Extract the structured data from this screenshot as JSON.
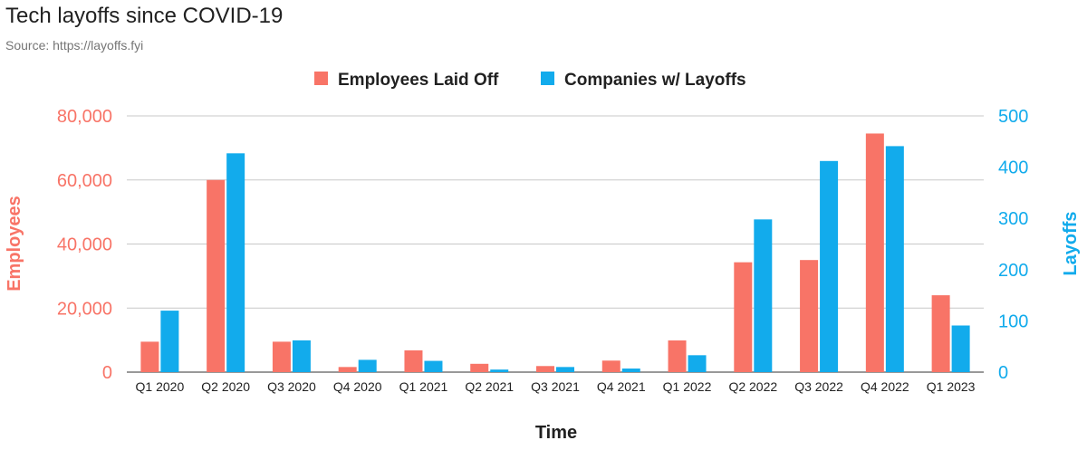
{
  "header": {
    "title": "Tech layoffs since COVID-19",
    "subtitle": "Source: https://layoffs.fyi"
  },
  "colors": {
    "employees": "#f87467",
    "companies": "#12abec",
    "grid": "#c8c8c8",
    "baseline": "#333333"
  },
  "chart_data": {
    "type": "bar",
    "title": "Tech layoffs since COVID-19",
    "subtitle": "Source: https://layoffs.fyi",
    "xlabel": "Time",
    "ylabel_left": "Employees",
    "ylabel_right": "Layoffs",
    "categories": [
      "Q1 2020",
      "Q2 2020",
      "Q3 2020",
      "Q4 2020",
      "Q1 2021",
      "Q2 2021",
      "Q3 2021",
      "Q4 2021",
      "Q1 2022",
      "Q2 2022",
      "Q3 2022",
      "Q4 2022",
      "Q1 2023"
    ],
    "series": [
      {
        "name": "Employees Laid Off",
        "axis": "left",
        "values": [
          9500,
          60000,
          9500,
          1600,
          6800,
          2600,
          1900,
          3600,
          9900,
          34300,
          35000,
          74500,
          24000
        ]
      },
      {
        "name": "Companies w/ Layoffs",
        "axis": "right",
        "values": [
          120,
          427,
          62,
          24,
          22,
          5,
          10,
          7,
          33,
          298,
          412,
          441,
          91
        ]
      }
    ],
    "ylim_left": [
      0,
      80000
    ],
    "ylim_right": [
      0,
      500
    ],
    "yticks_left": [
      0,
      20000,
      40000,
      60000,
      80000
    ],
    "yticks_left_labels": [
      "0",
      "20,000",
      "40,000",
      "60,000",
      "80,000"
    ],
    "yticks_right": [
      0,
      100,
      200,
      300,
      400,
      500
    ],
    "yticks_right_labels": [
      "0",
      "100",
      "200",
      "300",
      "400",
      "500"
    ],
    "legend": "top-center",
    "grid": true
  }
}
